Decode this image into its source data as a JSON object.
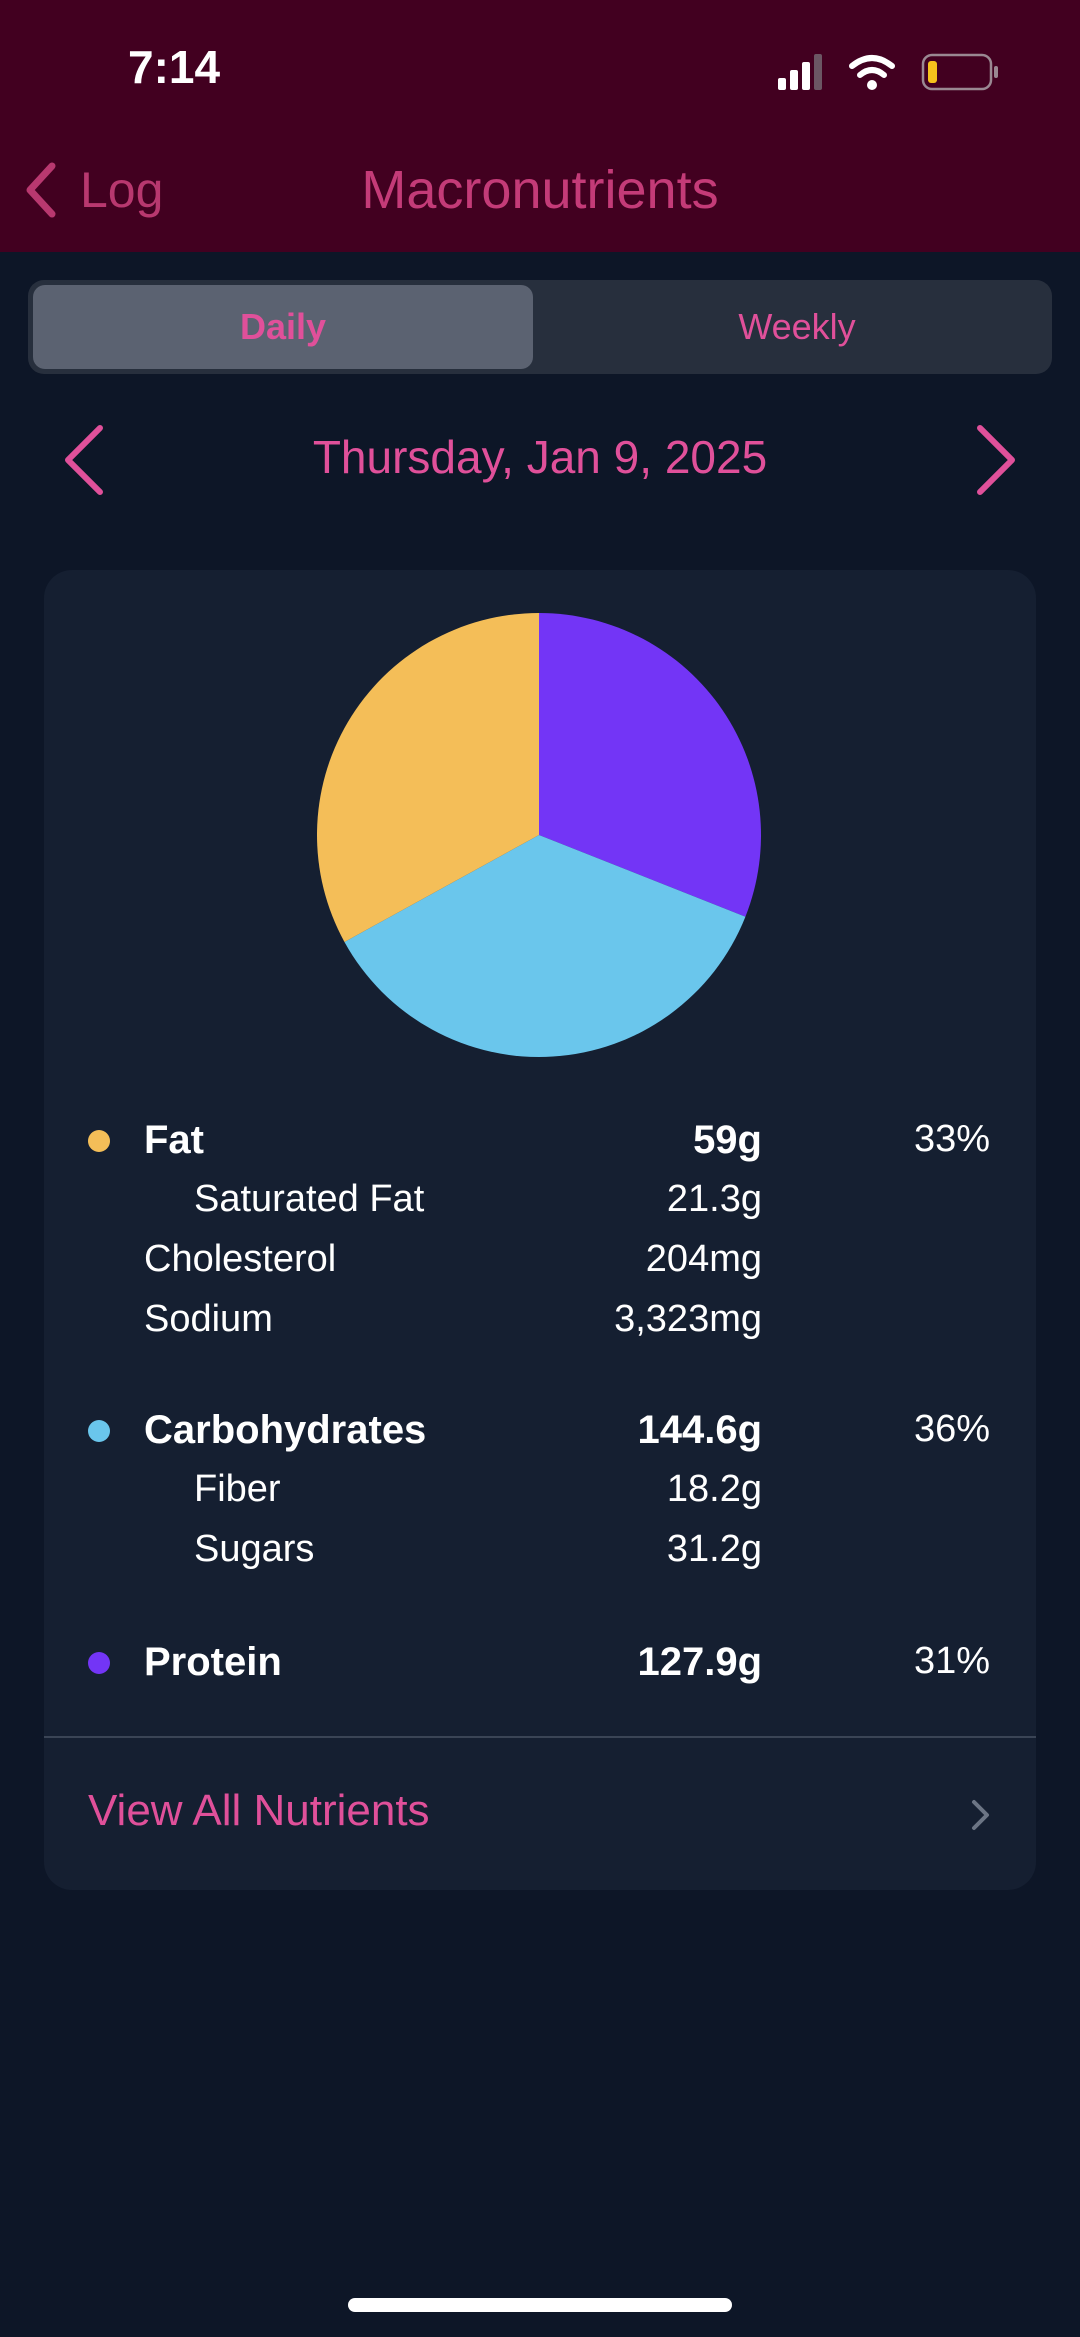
{
  "status_bar": {
    "time": "7:14",
    "icons": [
      "cellular-signal-icon",
      "wifi-icon",
      "battery-low-icon"
    ]
  },
  "nav": {
    "back_label": "Log",
    "title": "Macronutrients",
    "back_icon": "chevron-left-icon"
  },
  "segment": {
    "daily": "Daily",
    "weekly": "Weekly",
    "selected": "Daily"
  },
  "date": {
    "label": "Thursday, Jan 9, 2025"
  },
  "chart_data": {
    "type": "pie",
    "title": "",
    "slices": [
      {
        "name": "Protein",
        "value": 31,
        "color": "#7335f6"
      },
      {
        "name": "Carbohydrates",
        "value": 36,
        "color": "#6ac6ec"
      },
      {
        "name": "Fat",
        "value": 33,
        "color": "#f4be58"
      }
    ]
  },
  "nutrients": {
    "fat": {
      "label": "Fat",
      "value": "59g",
      "pct": "33%",
      "color": "#f4be58"
    },
    "saturated_fat": {
      "label": "Saturated Fat",
      "value": "21.3g"
    },
    "cholesterol": {
      "label": "Cholesterol",
      "value": "204mg"
    },
    "sodium": {
      "label": "Sodium",
      "value": "3,323mg"
    },
    "carbs": {
      "label": "Carbohydrates",
      "value": "144.6g",
      "pct": "36%",
      "color": "#6ac6ec"
    },
    "fiber": {
      "label": "Fiber",
      "value": "18.2g"
    },
    "sugars": {
      "label": "Sugars",
      "value": "31.2g"
    },
    "protein": {
      "label": "Protein",
      "value": "127.9g",
      "pct": "31%",
      "color": "#7335f6"
    }
  },
  "footer": {
    "view_all": "View All Nutrients"
  },
  "colors": {
    "accent": "#e0509a",
    "header_bg": "#420020",
    "page_bg": "#0d1627",
    "card_bg": "#151f31"
  }
}
